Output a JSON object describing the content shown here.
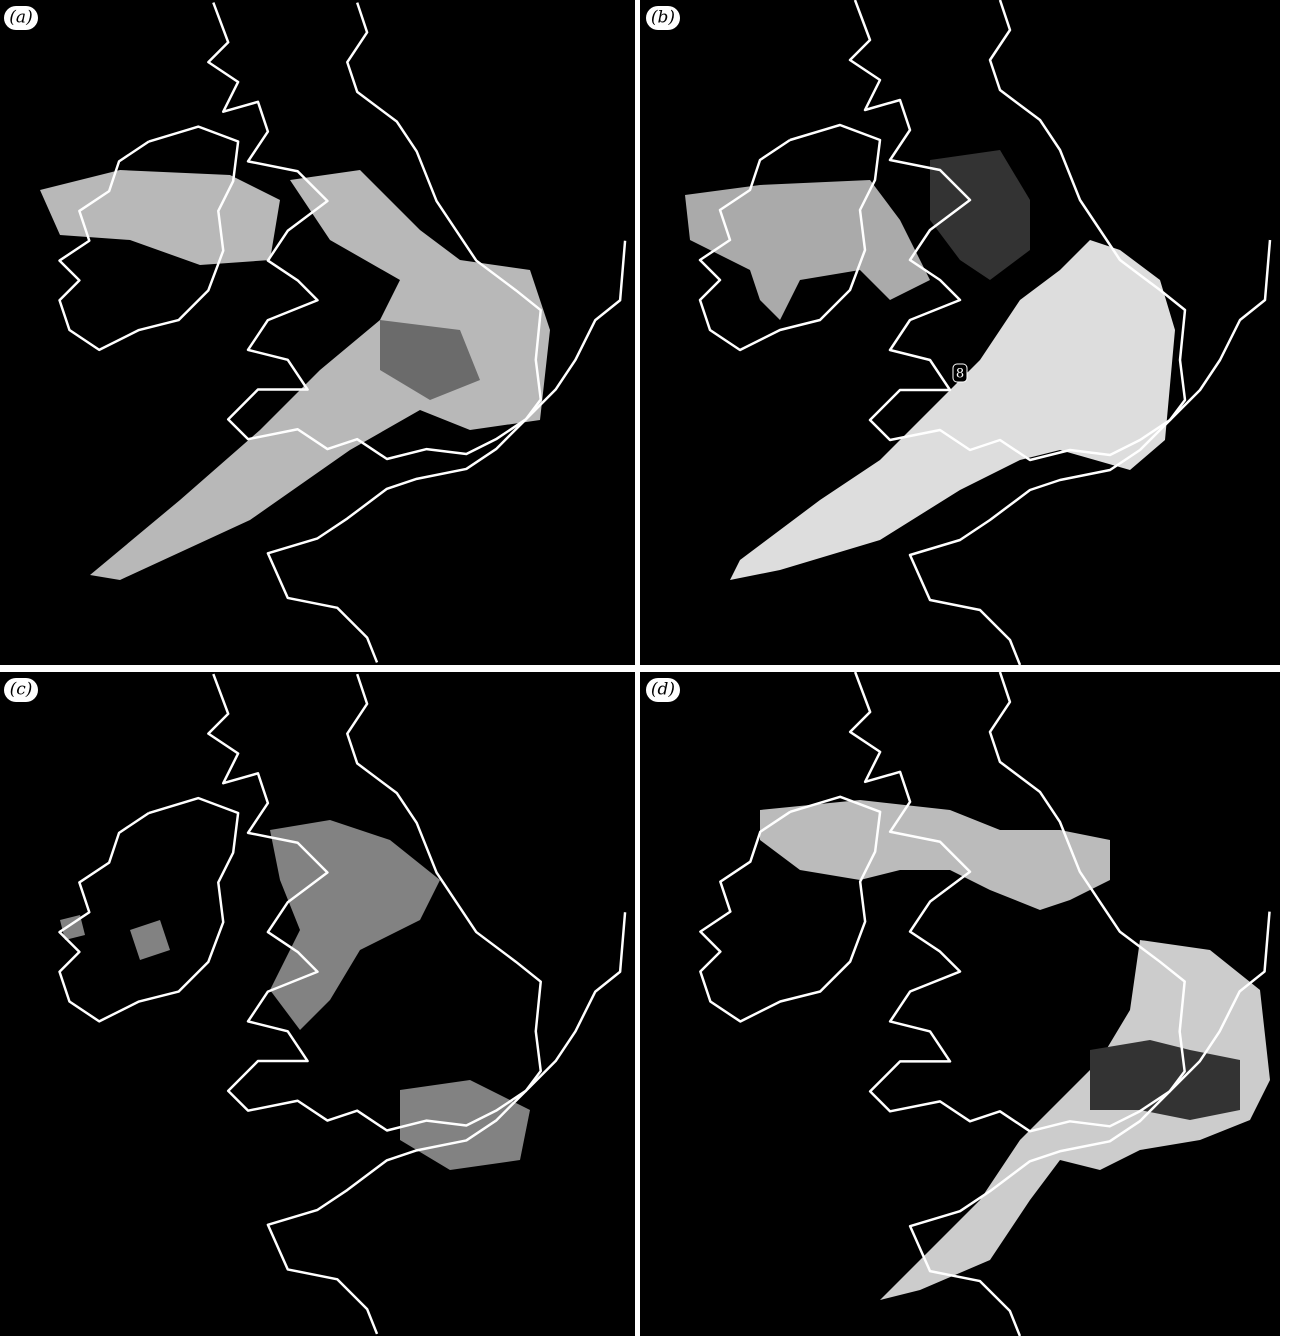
{
  "panels": [
    {
      "label": "(a)"
    },
    {
      "label": "(b)",
      "annotation": "8"
    },
    {
      "label": "(c)"
    },
    {
      "label": "(d)"
    }
  ]
}
